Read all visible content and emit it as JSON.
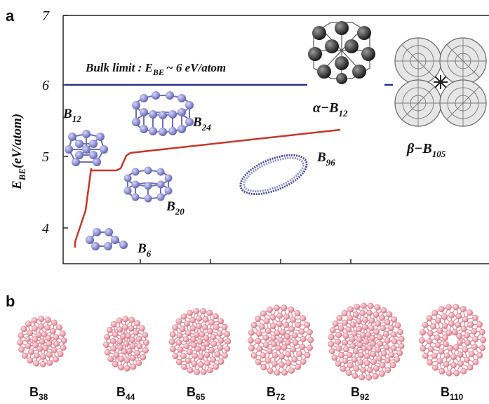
{
  "panel_a": {
    "letter": "a",
    "ylabel_main": "E",
    "ylabel_sub": "BE",
    "ylabel_tail": "(eV/atom)",
    "yticks": [
      "7",
      "6",
      "5",
      "4"
    ],
    "bulk_limit": {
      "prefix": "Bulk limit : E",
      "sub": "BE",
      "suffix": "~ 6 eV/atom",
      "value": 6,
      "color": "#2e2f8c"
    },
    "labels": {
      "b12_main": "B",
      "b12_sub": "12",
      "b24_main": "B",
      "b24_sub": "24",
      "b96_main": "B",
      "b96_sub": "96",
      "b20_main": "B",
      "b20_sub": "20",
      "b6_main": "B",
      "b6_sub": "6",
      "alpha_main": "α−B",
      "alpha_sub": "12",
      "beta_main": "β−B",
      "beta_sub": "105"
    },
    "curve_color": "#c0392b"
  },
  "panel_b": {
    "letter": "b",
    "clusters": [
      {
        "main": "B",
        "sub": "38"
      },
      {
        "main": "B",
        "sub": "44"
      },
      {
        "main": "B",
        "sub": "65"
      },
      {
        "main": "B",
        "sub": "72"
      },
      {
        "main": "B",
        "sub": "92"
      },
      {
        "main": "B",
        "sub": "110"
      }
    ]
  }
}
